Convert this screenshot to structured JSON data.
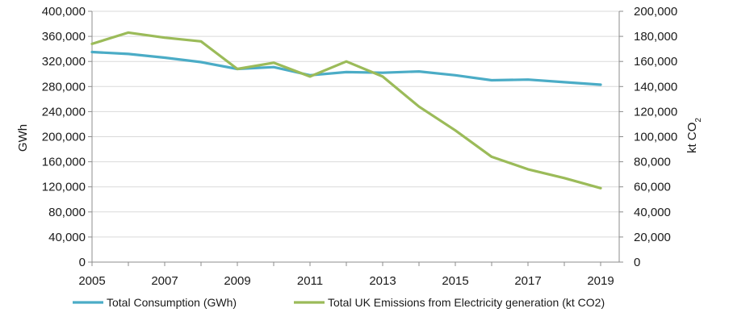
{
  "chart_data": {
    "type": "line",
    "x": [
      2005,
      2006,
      2007,
      2008,
      2009,
      2010,
      2011,
      2012,
      2013,
      2014,
      2015,
      2016,
      2017,
      2018,
      2019
    ],
    "x_tick_labels": [
      "2005",
      "2007",
      "2009",
      "2011",
      "2013",
      "2015",
      "2017",
      "2019"
    ],
    "x_ticks": [
      2005,
      2007,
      2009,
      2011,
      2013,
      2015,
      2017,
      2019
    ],
    "xlim": [
      2005,
      2019.5
    ],
    "y_left": {
      "label": "GWh",
      "lim": [
        0,
        400000
      ],
      "ticks": [
        0,
        40000,
        80000,
        120000,
        160000,
        200000,
        240000,
        280000,
        320000,
        360000,
        400000
      ],
      "tick_labels": [
        "0",
        "40,000",
        "80,000",
        "120,000",
        "160,000",
        "200,000",
        "240,000",
        "280,000",
        "320,000",
        "360,000",
        "400,000"
      ]
    },
    "y_right": {
      "label": "kt CO",
      "label_subscript": "2",
      "lim": [
        0,
        200000
      ],
      "ticks": [
        0,
        20000,
        40000,
        60000,
        80000,
        100000,
        120000,
        140000,
        160000,
        180000,
        200000
      ],
      "tick_labels": [
        "0",
        "20,000",
        "40,000",
        "60,000",
        "80,000",
        "100,000",
        "120,000",
        "140,000",
        "160,000",
        "180,000",
        "200,000"
      ]
    },
    "series": [
      {
        "name": "Total Consumption (GWh)",
        "axis": "left",
        "color": "#4bacc6",
        "values": [
          335000,
          332000,
          326000,
          319000,
          308000,
          311000,
          298000,
          303000,
          302000,
          304000,
          298000,
          290000,
          291000,
          287000,
          283000
        ]
      },
      {
        "name": "Total UK Emissions from Electricity generation (kt CO2)",
        "axis": "right",
        "color": "#9bbb59",
        "values": [
          174000,
          183000,
          179000,
          176000,
          154000,
          159000,
          148000,
          160000,
          148000,
          124000,
          105000,
          84000,
          74000,
          67000,
          59000
        ]
      }
    ],
    "legend_position": "bottom",
    "grid": "horizontal"
  }
}
